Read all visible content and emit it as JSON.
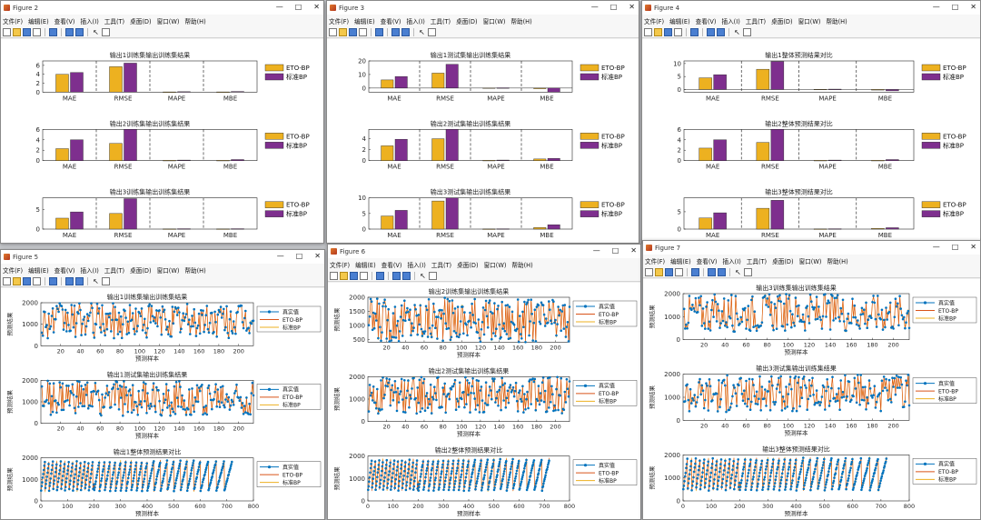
{
  "menu": [
    "文件(F)",
    "编辑(E)",
    "查看(V)",
    "插入(I)",
    "工具(T)",
    "桌面(D)",
    "窗口(W)",
    "帮助(H)"
  ],
  "colors": {
    "eto": "#EDB120",
    "bp": "#7E2F8E",
    "true": "#0072BD",
    "eto_line": "#D95319",
    "bp_line": "#EDB120"
  },
  "legend_bar": [
    "ETO-BP",
    "标准BP"
  ],
  "legend_line": [
    "真实值",
    "ETO-BP",
    "标准BP"
  ],
  "xlabel": "预测样本",
  "ylabel": "预测结果",
  "windows": [
    {
      "title": "Figure 2",
      "chart_data": [
        {
          "type": "bar",
          "title": "输出1训练集输出训练集结果",
          "categories": [
            "MAE",
            "RMSE",
            "MAPE",
            "MBE"
          ],
          "series": [
            {
              "name": "ETO-BP",
              "values": [
                4.0,
                5.7,
                0.05,
                0.05
              ]
            },
            {
              "name": "标准BP",
              "values": [
                4.4,
                6.5,
                0.1,
                0.15
              ]
            }
          ],
          "ylim": [
            0,
            7
          ],
          "yticks": [
            0,
            2,
            4,
            6
          ]
        },
        {
          "type": "bar",
          "title": "输出2训练集输出训练集结果",
          "categories": [
            "MAE",
            "RMSE",
            "MAPE",
            "MBE"
          ],
          "series": [
            {
              "name": "ETO-BP",
              "values": [
                2.3,
                3.3,
                0.05,
                0.05
              ]
            },
            {
              "name": "标准BP",
              "values": [
                4.0,
                6.0,
                0.1,
                0.2
              ]
            }
          ],
          "ylim": [
            0,
            6
          ],
          "yticks": [
            0,
            2,
            4,
            6
          ]
        },
        {
          "type": "bar",
          "title": "输出3训练集输出训练集结果",
          "categories": [
            "MAE",
            "RMSE",
            "MAPE",
            "MBE"
          ],
          "series": [
            {
              "name": "ETO-BP",
              "values": [
                2.8,
                4.0,
                0.05,
                0.05
              ]
            },
            {
              "name": "标准BP",
              "values": [
                4.4,
                7.8,
                0.1,
                0.1
              ]
            }
          ],
          "ylim": [
            0,
            8
          ],
          "yticks": [
            0,
            5
          ]
        }
      ]
    },
    {
      "title": "Figure 3",
      "chart_data": [
        {
          "type": "bar",
          "title": "输出1测试集输出训练集结果",
          "categories": [
            "MAE",
            "RMSE",
            "MAPE",
            "MBE"
          ],
          "series": [
            {
              "name": "ETO-BP",
              "values": [
                6.0,
                11.0,
                0.1,
                -0.5
              ]
            },
            {
              "name": "标准BP",
              "values": [
                8.5,
                17.5,
                0.2,
                -3.0
              ]
            }
          ],
          "ylim": [
            -3,
            20
          ],
          "yticks": [
            0,
            10,
            20
          ]
        },
        {
          "type": "bar",
          "title": "输出2测试集输出训练集结果",
          "categories": [
            "MAE",
            "RMSE",
            "MAPE",
            "MBE"
          ],
          "series": [
            {
              "name": "ETO-BP",
              "values": [
                2.7,
                4.0,
                0.05,
                0.3
              ]
            },
            {
              "name": "标准BP",
              "values": [
                3.9,
                5.7,
                0.1,
                0.4
              ]
            }
          ],
          "ylim": [
            0,
            5.7
          ],
          "yticks": [
            0,
            2,
            4
          ]
        },
        {
          "type": "bar",
          "title": "输出3测试集输出训练集结果",
          "categories": [
            "MAE",
            "RMSE",
            "MAPE",
            "MBE"
          ],
          "series": [
            {
              "name": "ETO-BP",
              "values": [
                4.2,
                9.0,
                0.05,
                0.5
              ]
            },
            {
              "name": "标准BP",
              "values": [
                6.0,
                10.0,
                0.1,
                1.4
              ]
            }
          ],
          "ylim": [
            0,
            10
          ],
          "yticks": [
            0,
            5,
            10
          ]
        }
      ]
    },
    {
      "title": "Figure 4",
      "chart_data": [
        {
          "type": "bar",
          "title": "输出1整体预测结果对比",
          "categories": [
            "MAE",
            "RMSE",
            "MAPE",
            "MBE"
          ],
          "series": [
            {
              "name": "ETO-BP",
              "values": [
                4.5,
                7.8,
                0.1,
                -0.2
              ]
            },
            {
              "name": "标准BP",
              "values": [
                5.7,
                10.8,
                0.15,
                -0.5
              ]
            }
          ],
          "ylim": [
            -1,
            11
          ],
          "yticks": [
            0,
            5,
            10
          ]
        },
        {
          "type": "bar",
          "title": "输出2整体预测结果对比",
          "categories": [
            "MAE",
            "RMSE",
            "MAPE",
            "MBE"
          ],
          "series": [
            {
              "name": "ETO-BP",
              "values": [
                2.4,
                3.5,
                0.05,
                0.05
              ]
            },
            {
              "name": "标准BP",
              "values": [
                4.0,
                6.0,
                0.1,
                0.2
              ]
            }
          ],
          "ylim": [
            0,
            6
          ],
          "yticks": [
            0,
            2,
            4,
            6
          ]
        },
        {
          "type": "bar",
          "title": "输出3整体预测结果对比",
          "categories": [
            "MAE",
            "RMSE",
            "MAPE",
            "MBE"
          ],
          "series": [
            {
              "name": "ETO-BP",
              "values": [
                3.2,
                6.0,
                0.05,
                0.2
              ]
            },
            {
              "name": "标准BP",
              "values": [
                4.7,
                8.3,
                0.1,
                0.4
              ]
            }
          ],
          "ylim": [
            0,
            9
          ],
          "yticks": [
            0,
            5
          ]
        }
      ]
    },
    {
      "title": "Figure 5",
      "chart_data": [
        {
          "type": "line",
          "title": "输出1训练集输出训练集结果",
          "xlim": [
            0,
            215
          ],
          "xticks": [
            20,
            40,
            60,
            80,
            100,
            120,
            140,
            160,
            180,
            200
          ],
          "ylim": [
            0,
            2000
          ],
          "yticks": [
            0,
            1000,
            2000
          ],
          "n": 215,
          "period": 0
        },
        {
          "type": "line",
          "title": "输出1测试集输出训练集结果",
          "xlim": [
            0,
            215
          ],
          "xticks": [
            20,
            40,
            60,
            80,
            100,
            120,
            140,
            160,
            180,
            200
          ],
          "ylim": [
            0,
            2000
          ],
          "yticks": [
            0,
            1000,
            2000
          ],
          "n": 215,
          "period": 0
        },
        {
          "type": "line",
          "title": "输出1整体预测结果对比",
          "xlim": [
            0,
            800
          ],
          "xticks": [
            0,
            100,
            200,
            300,
            400,
            500,
            600,
            700,
            800
          ],
          "ylim": [
            0,
            2000
          ],
          "yticks": [
            0,
            1000,
            2000
          ],
          "n": 720,
          "period": 40
        }
      ]
    },
    {
      "title": "Figure 6",
      "chart_data": [
        {
          "type": "line",
          "title": "输出2训练集输出训练集结果",
          "xlim": [
            0,
            215
          ],
          "xticks": [
            20,
            40,
            60,
            80,
            100,
            120,
            140,
            160,
            180,
            200
          ],
          "ylim": [
            400,
            2000
          ],
          "yticks": [
            500,
            1000,
            1500,
            2000
          ],
          "n": 215,
          "period": 0
        },
        {
          "type": "line",
          "title": "输出2测试集输出训练集结果",
          "xlim": [
            0,
            215
          ],
          "xticks": [
            20,
            40,
            60,
            80,
            100,
            120,
            140,
            160,
            180,
            200
          ],
          "ylim": [
            0,
            2000
          ],
          "yticks": [
            0,
            1000,
            2000
          ],
          "n": 215,
          "period": 0
        },
        {
          "type": "line",
          "title": "输出2整体预测结果对比",
          "xlim": [
            0,
            800
          ],
          "xticks": [
            0,
            100,
            200,
            300,
            400,
            500,
            600,
            700,
            800
          ],
          "ylim": [
            0,
            2000
          ],
          "yticks": [
            0,
            1000,
            2000
          ],
          "n": 720,
          "period": 40
        }
      ]
    },
    {
      "title": "Figure 7",
      "chart_data": [
        {
          "type": "line",
          "title": "输出3训练集输出训练集结果",
          "xlim": [
            0,
            215
          ],
          "xticks": [
            20,
            40,
            60,
            80,
            100,
            120,
            140,
            160,
            180,
            200
          ],
          "ylim": [
            0,
            2000
          ],
          "yticks": [
            0,
            1000,
            2000
          ],
          "n": 215,
          "period": 0
        },
        {
          "type": "line",
          "title": "输出3测试集输出训练集结果",
          "xlim": [
            0,
            215
          ],
          "xticks": [
            20,
            40,
            60,
            80,
            100,
            120,
            140,
            160,
            180,
            200
          ],
          "ylim": [
            0,
            2000
          ],
          "yticks": [
            0,
            1000,
            2000
          ],
          "n": 215,
          "period": 0
        },
        {
          "type": "line",
          "title": "输出3整体预测结果对比",
          "xlim": [
            0,
            800
          ],
          "xticks": [
            0,
            100,
            200,
            300,
            400,
            500,
            600,
            700,
            800
          ],
          "ylim": [
            0,
            2000
          ],
          "yticks": [
            0,
            1000,
            2000
          ],
          "n": 720,
          "period": 40
        }
      ]
    }
  ]
}
